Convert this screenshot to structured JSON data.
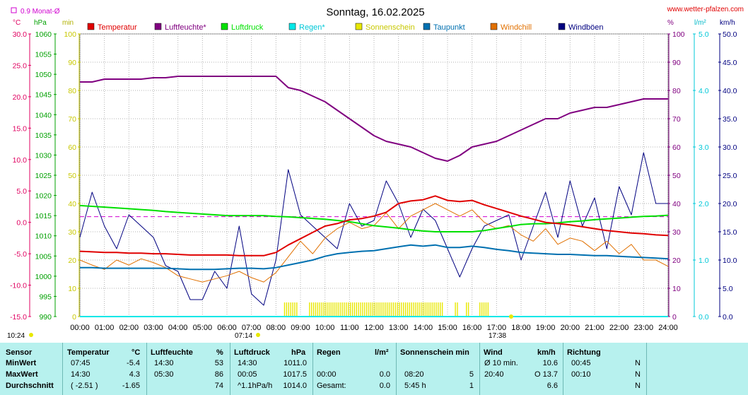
{
  "header": {
    "title": "Sonntag, 16.02.2025",
    "site": "www.wetter-pfalzen.com",
    "avg_note": "0.9 Monat-Ø"
  },
  "axes": {
    "temp_unit": "°C",
    "press_unit": "hPa",
    "min_unit": "min",
    "hum_unit": "%",
    "rain_unit": "l/m²",
    "wind_unit": "km/h",
    "temp_ticks": [
      "30.0",
      "25.0",
      "20.0",
      "15.0",
      "10.0",
      "5.0",
      "0.0",
      "-5.0",
      "-10.0",
      "-15.0"
    ],
    "press_ticks": [
      "1060",
      "1055",
      "1050",
      "1045",
      "1040",
      "1035",
      "1030",
      "1025",
      "1020",
      "1015",
      "1010",
      "1005",
      "1000",
      "995",
      "990"
    ],
    "min_ticks": [
      "100",
      "90",
      "80",
      "70",
      "60",
      "50",
      "40",
      "30",
      "20",
      "10",
      "0"
    ],
    "hum_ticks": [
      "100",
      "90",
      "80",
      "70",
      "60",
      "50",
      "40",
      "30",
      "20",
      "10",
      "0"
    ],
    "rain_ticks": [
      "5.0",
      "4.0",
      "3.0",
      "2.0",
      "1.0",
      "0.0"
    ],
    "wind_ticks": [
      "50.0",
      "45.0",
      "40.0",
      "35.0",
      "30.0",
      "25.0",
      "20.0",
      "15.0",
      "10.0",
      "5.0",
      "0.0"
    ],
    "time_ticks": [
      "00:00",
      "01:00",
      "02:00",
      "03:00",
      "04:00",
      "05:00",
      "06:00",
      "07:00",
      "08:00",
      "09:00",
      "10:00",
      "11:00",
      "12:00",
      "13:00",
      "14:00",
      "15:00",
      "16:00",
      "17:00",
      "18:00",
      "19:00",
      "20:00",
      "21:00",
      "22:00",
      "23:00",
      "24:00"
    ],
    "sunrise": "07:14",
    "sunset": "17:38",
    "moon_time": "10:24"
  },
  "legend": [
    {
      "label": "Temperatur",
      "color": "#e00000"
    },
    {
      "label": "Luftfeuchte*",
      "color": "#800080"
    },
    {
      "label": "Luftdruck",
      "color": "#00e000"
    },
    {
      "label": "Regen*",
      "color": "#00e8e8"
    },
    {
      "label": "Sonnenschein",
      "color": "#e8e800"
    },
    {
      "label": "Taupunkt",
      "color": "#0070b0"
    },
    {
      "label": "Windchill",
      "color": "#e07000"
    },
    {
      "label": "Windböen",
      "color": "#000080"
    }
  ],
  "chart_data": {
    "type": "line",
    "title": "Sonntag, 16.02.2025",
    "x_hours": [
      0,
      0.5,
      1,
      1.5,
      2,
      2.5,
      3,
      3.5,
      4,
      4.5,
      5,
      5.5,
      6,
      6.5,
      7,
      7.5,
      8,
      8.5,
      9,
      9.5,
      10,
      10.5,
      11,
      11.5,
      12,
      12.5,
      13,
      13.5,
      14,
      14.5,
      15,
      15.5,
      16,
      16.5,
      17,
      17.5,
      18,
      18.5,
      19,
      19.5,
      20,
      20.5,
      21,
      21.5,
      22,
      22.5,
      23,
      23.5,
      24
    ],
    "series": [
      {
        "name": "Temperatur",
        "unit": "°C",
        "values": [
          -4.6,
          -4.7,
          -4.8,
          -4.8,
          -4.9,
          -4.9,
          -5.0,
          -5.0,
          -5.1,
          -5.2,
          -5.2,
          -5.2,
          -5.2,
          -5.3,
          -5.3,
          -5.3,
          -4.8,
          -3.6,
          -2.6,
          -1.6,
          -0.6,
          -0.2,
          0.4,
          0.6,
          1.0,
          1.6,
          3.0,
          3.4,
          3.6,
          4.2,
          3.5,
          3.3,
          3.5,
          2.8,
          2.2,
          1.6,
          1.0,
          0.5,
          0.0,
          -0.2,
          -0.4,
          -0.7,
          -1.0,
          -1.3,
          -1.5,
          -1.7,
          -1.8,
          -2.0,
          -2.1
        ]
      },
      {
        "name": "Luftfeuchte*",
        "unit": "%",
        "values": [
          83,
          83,
          84,
          84,
          84,
          84,
          84.5,
          84.5,
          85,
          85,
          85,
          85,
          85,
          85,
          85,
          85,
          85,
          81,
          80,
          78,
          76,
          73,
          70,
          67,
          64,
          62,
          61,
          60,
          58,
          56,
          55,
          57,
          60,
          61,
          62,
          64,
          66,
          68,
          70,
          70,
          72,
          73,
          74,
          74,
          75,
          76,
          77,
          77,
          77
        ]
      },
      {
        "name": "Luftdruck",
        "unit": "hPa",
        "values": [
          1017.5,
          1017.3,
          1017.1,
          1016.9,
          1016.7,
          1016.5,
          1016.3,
          1016.0,
          1015.8,
          1015.6,
          1015.4,
          1015.2,
          1015.0,
          1015.0,
          1015.0,
          1015.0,
          1014.8,
          1014.7,
          1014.5,
          1014.3,
          1014.1,
          1013.8,
          1013.5,
          1013.0,
          1012.5,
          1012.2,
          1011.9,
          1011.5,
          1011.2,
          1011.0,
          1011.0,
          1011.0,
          1011.0,
          1011.3,
          1011.8,
          1012.3,
          1012.8,
          1013.0,
          1013.0,
          1013.2,
          1013.5,
          1013.7,
          1014.0,
          1014.2,
          1014.4,
          1014.6,
          1014.8,
          1014.9,
          1015.1
        ]
      },
      {
        "name": "Regen*",
        "unit": "l/m²",
        "values": [
          0,
          0,
          0,
          0,
          0,
          0,
          0,
          0,
          0,
          0,
          0,
          0,
          0,
          0,
          0,
          0,
          0,
          0,
          0,
          0,
          0,
          0,
          0,
          0,
          0,
          0,
          0,
          0,
          0,
          0,
          0,
          0,
          0,
          0,
          0,
          0,
          0,
          0,
          0,
          0,
          0,
          0,
          0,
          0,
          0,
          0,
          0,
          0,
          0
        ]
      },
      {
        "name": "Taupunkt",
        "unit": "°C",
        "values": [
          -7.2,
          -7.2,
          -7.3,
          -7.3,
          -7.3,
          -7.3,
          -7.3,
          -7.3,
          -7.4,
          -7.5,
          -7.5,
          -7.5,
          -7.4,
          -7.3,
          -7.3,
          -7.4,
          -7.2,
          -6.8,
          -6.4,
          -6.0,
          -5.4,
          -5.0,
          -4.8,
          -4.6,
          -4.5,
          -4.2,
          -3.9,
          -3.6,
          -3.8,
          -3.6,
          -4.0,
          -4.0,
          -3.8,
          -4.0,
          -4.3,
          -4.5,
          -4.8,
          -4.9,
          -5.0,
          -5.1,
          -5.1,
          -5.2,
          -5.3,
          -5.3,
          -5.4,
          -5.5,
          -5.6,
          -5.7,
          -5.8
        ]
      },
      {
        "name": "Windchill",
        "unit": "°C",
        "values": [
          -6.0,
          -6.8,
          -7.5,
          -6.0,
          -6.8,
          -5.8,
          -6.4,
          -7.2,
          -8.5,
          -9.0,
          -9.5,
          -9.0,
          -8.5,
          -7.8,
          -8.8,
          -9.5,
          -8.0,
          -5.5,
          -3.0,
          -5.0,
          -2.5,
          -1.0,
          0.0,
          -1.0,
          -0.5,
          1.5,
          -1.0,
          1.0,
          2.0,
          3.0,
          2.0,
          1.0,
          2.0,
          0.0,
          -1.0,
          -0.5,
          -2.0,
          -3.0,
          -1.0,
          -3.5,
          -2.5,
          -3.0,
          -4.5,
          -3.0,
          -5.0,
          -3.5,
          -6.0,
          -6.0,
          -7.0
        ]
      },
      {
        "name": "Windböen",
        "unit": "km/h",
        "values": [
          14,
          22,
          16,
          12,
          18,
          16,
          14,
          9,
          8,
          3,
          3,
          8,
          5,
          16,
          4,
          2,
          10,
          26,
          18,
          16,
          14,
          12,
          20,
          16,
          17,
          24,
          20,
          14,
          19,
          17,
          12,
          7,
          12,
          16,
          17,
          18,
          10,
          16,
          22,
          14,
          24,
          16,
          21,
          12,
          23,
          18,
          29,
          20,
          20
        ]
      }
    ],
    "sunshine_minutes_note": "yellow bars 08:20–16:40",
    "reference_line": {
      "label": "0.9 Monat-Ø",
      "value_celsius": 0.9
    }
  },
  "table": {
    "headers": {
      "sensor": "Sensor",
      "temperature": "Temperatur",
      "temp_unit": "°C",
      "humidity": "Luftfeuchte",
      "hum_unit": "%",
      "pressure": "Luftdruck",
      "press_unit": "hPa",
      "rain": "Regen",
      "rain_unit": "l/m²",
      "sun": "Sonnenschein min",
      "wind": "Wind",
      "wind_unit": "km/h",
      "direction": "Richtung"
    },
    "rows": [
      {
        "label": "MinWert",
        "t_time": "07:45",
        "t_val": "-5.4",
        "h_time": "14:30",
        "h_val": "53",
        "p_time": "14:30",
        "p_val": "1011.0",
        "r_time": "",
        "r_val": "",
        "s_time": "",
        "s_val": "",
        "w_time": "Ø 10 min.",
        "w_val": "10.6",
        "d_time": "00:45",
        "d_val": "N"
      },
      {
        "label": "MaxWert",
        "t_time": "14:30",
        "t_val": "4.3",
        "h_time": "05:30",
        "h_val": "86",
        "p_time": "00:05",
        "p_val": "1017.5",
        "r_time": "00:00",
        "r_val": "0.0",
        "s_time": "08:20",
        "s_val": "5",
        "w_time": "20:40",
        "w_val": "O 13.7",
        "d_time": "00:10",
        "d_val": "N"
      },
      {
        "label": "Durchschnitt",
        "t_time": "( -2.51 )",
        "t_val": "-1.65",
        "h_time": "",
        "h_val": "74",
        "p_time": "^1.1hPa/h",
        "p_val": "1014.0",
        "r_time": "Gesamt:",
        "r_val": "0.0",
        "s_time": "5:45 h",
        "s_val": "1",
        "w_time": "",
        "w_val": "6.6",
        "d_time": "",
        "d_val": "N"
      }
    ]
  }
}
